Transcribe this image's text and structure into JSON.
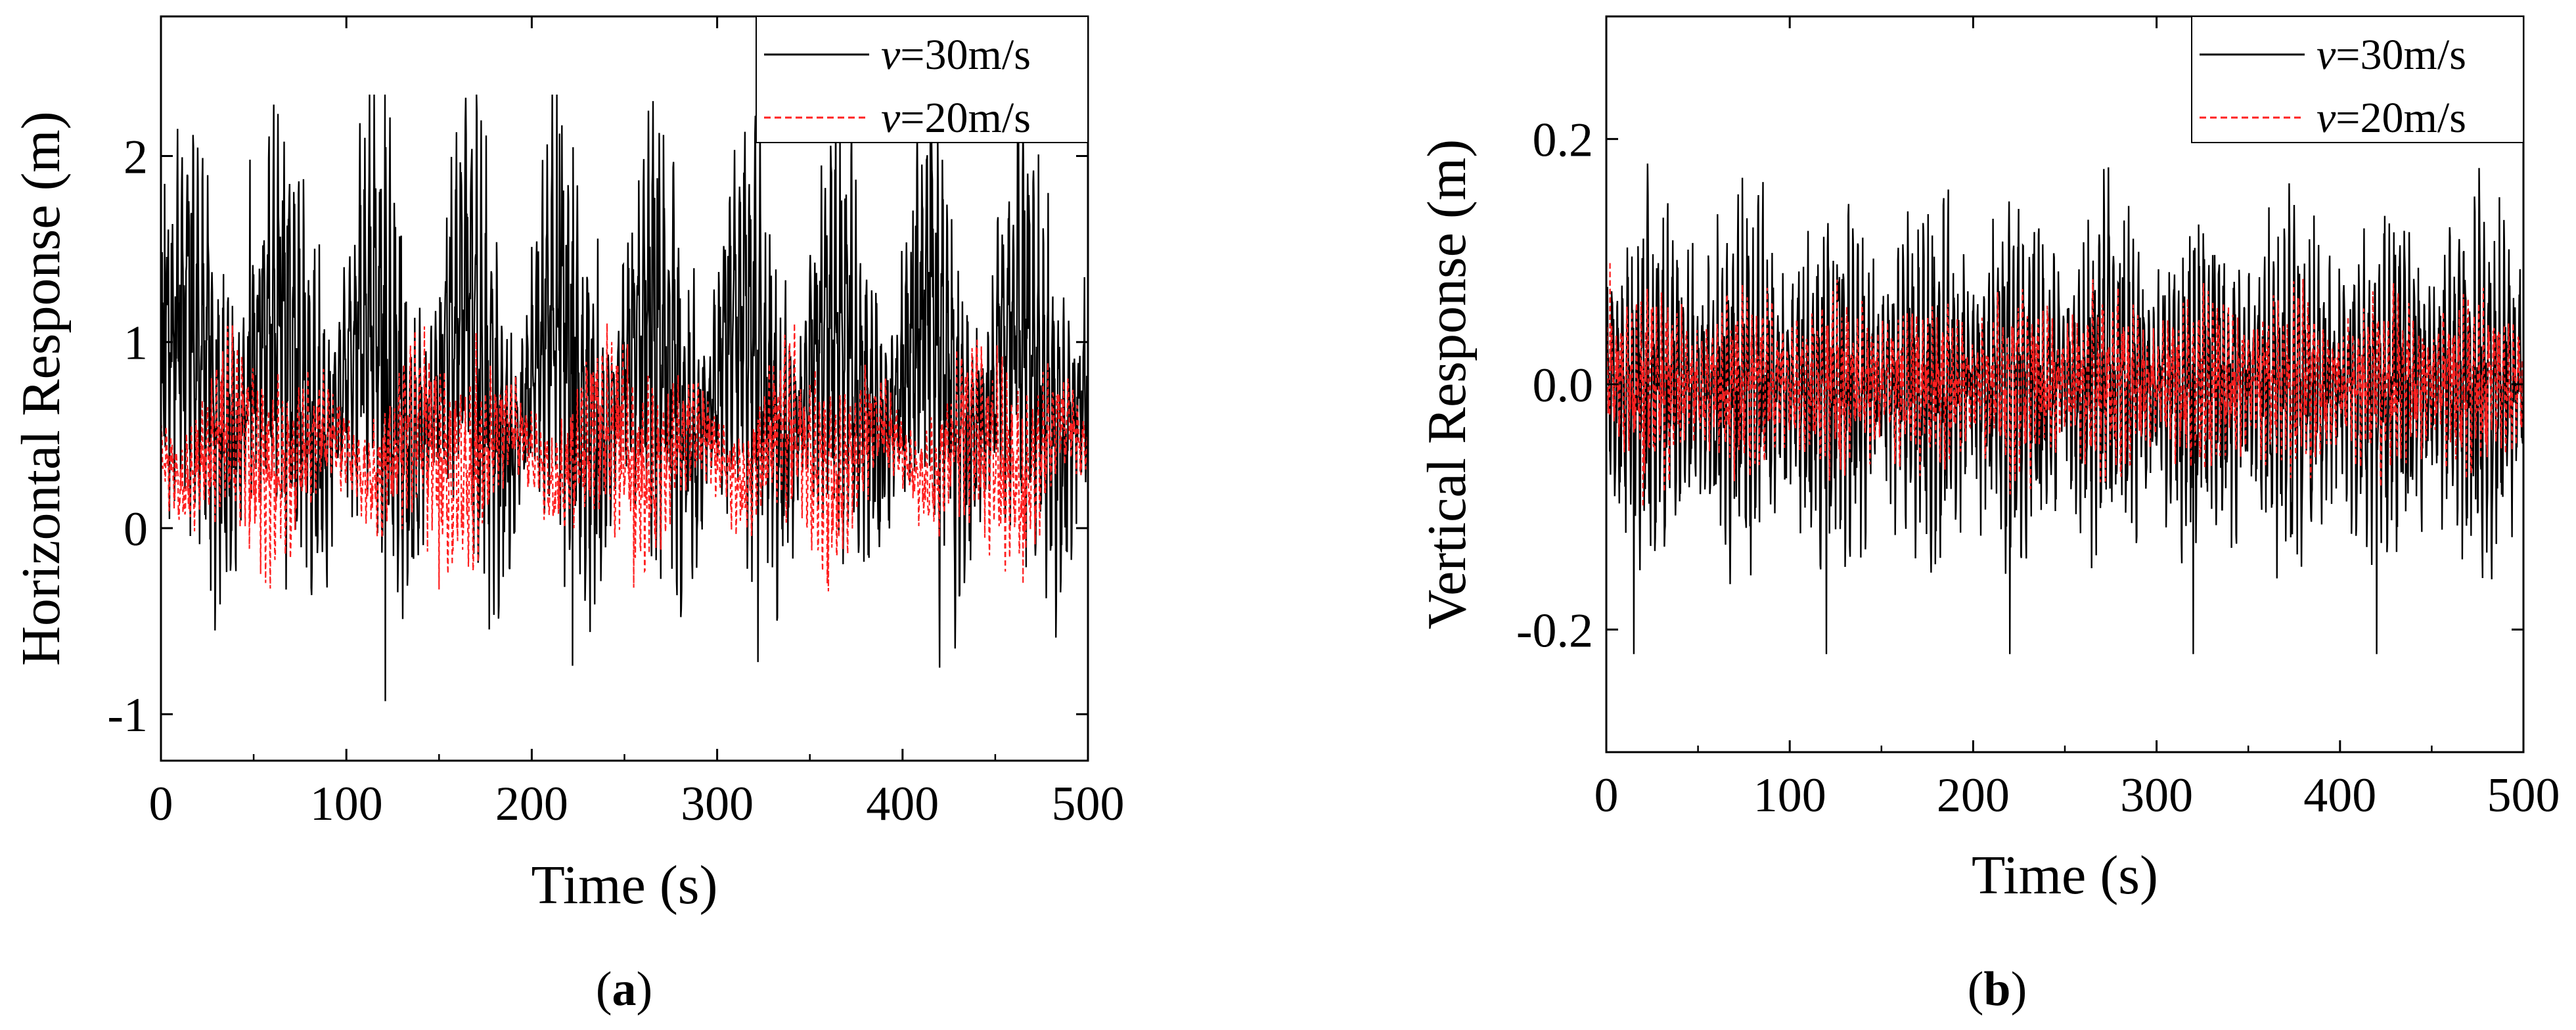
{
  "chart_data": [
    {
      "type": "line",
      "panel": "a",
      "caption": "a",
      "title": "",
      "xlabel": "Time (s)",
      "ylabel": "Horizontal Response (m)",
      "xlim": [
        0,
        500
      ],
      "ylim": [
        -1.25,
        2.75
      ],
      "xticks": [
        "0",
        "100",
        "200",
        "300",
        "400",
        "500"
      ],
      "yticks": [
        "-1",
        "0",
        "1",
        "2"
      ],
      "grid": false,
      "legend_position": "top-right",
      "series": [
        {
          "name": "v=30m/s",
          "legend_var": "v",
          "legend_rest": "=30m/s",
          "color": "#000000",
          "style": "solid",
          "approx": {
            "mean": 0.82,
            "min": -0.93,
            "max": 2.33,
            "period_s": 100
          },
          "peaks": [
            {
              "t": 2,
              "v": 1.85
            },
            {
              "t": 48,
              "v": 1.98
            },
            {
              "t": 115,
              "v": 2.33
            },
            {
              "t": 121,
              "v": -0.93
            },
            {
              "t": 215,
              "v": 2.12
            },
            {
              "t": 222,
              "v": -0.74
            },
            {
              "t": 315,
              "v": 2.13
            },
            {
              "t": 322,
              "v": -0.72
            },
            {
              "t": 415,
              "v": 2.09
            },
            {
              "t": 420,
              "v": -0.75
            }
          ]
        },
        {
          "name": "v=20m/s",
          "legend_var": "v",
          "legend_rest": "=20m/s",
          "color": "#ff2020",
          "style": "dashed",
          "approx": {
            "mean": 0.4,
            "min": -0.35,
            "max": 1.1,
            "period_s": 100
          },
          "peaks": [
            {
              "t": 150,
              "v": -0.33
            },
            {
              "t": 170,
              "v": 1.05
            },
            {
              "t": 255,
              "v": -0.32
            },
            {
              "t": 360,
              "v": -0.34
            },
            {
              "t": 465,
              "v": -0.3
            }
          ]
        }
      ]
    },
    {
      "type": "line",
      "panel": "b",
      "caption": "b",
      "title": "",
      "xlabel": "Time (s)",
      "ylabel": "Vertical Response (m)",
      "xlim": [
        0,
        500
      ],
      "ylim": [
        -0.3,
        0.3
      ],
      "xticks": [
        "0",
        "100",
        "200",
        "300",
        "400",
        "500"
      ],
      "yticks": [
        "-0.2",
        "0.0",
        "0.2"
      ],
      "grid": false,
      "legend_position": "top-right",
      "series": [
        {
          "name": "v=30m/s",
          "legend_var": "v",
          "legend_rest": "=30m/s",
          "color": "#000000",
          "style": "solid",
          "approx": {
            "mean": 0.0,
            "min": -0.22,
            "max": 0.18,
            "period_s": 100
          },
          "peaks": [
            {
              "t": 15,
              "v": -0.22
            },
            {
              "t": 120,
              "v": -0.22
            },
            {
              "t": 220,
              "v": -0.22
            },
            {
              "t": 320,
              "v": -0.22
            },
            {
              "t": 420,
              "v": -0.22
            }
          ]
        },
        {
          "name": "v=20m/s",
          "legend_var": "v",
          "legend_rest": "=20m/s",
          "color": "#ff2020",
          "style": "dashed",
          "approx": {
            "mean": 0.0,
            "min": -0.1,
            "max": 0.1,
            "period_s": 100
          },
          "peaks": [
            {
              "t": 2,
              "v": 0.1
            },
            {
              "t": 20,
              "v": -0.1
            }
          ]
        }
      ]
    }
  ]
}
